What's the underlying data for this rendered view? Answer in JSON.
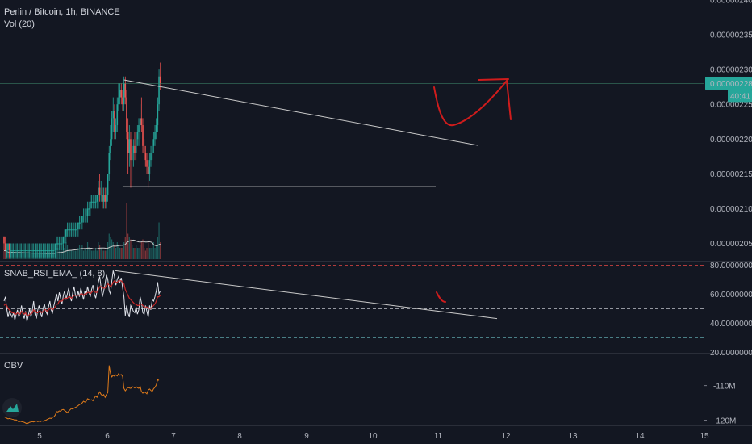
{
  "header": {
    "title": "Perlin / Bitcoin, 1h, BINANCE",
    "volume_label": "Vol (20)"
  },
  "price_tag": {
    "value": "0.00000228",
    "countdown": "40:41"
  },
  "chart_data": [
    {
      "type": "candlestick",
      "title": "Perlin / Bitcoin, 1h, BINANCE",
      "y_ticks": [
        "0.00000240",
        "0.00000235",
        "0.00000230",
        "0.00000225",
        "0.00000220",
        "0.00000215",
        "0.00000210",
        "0.00000205"
      ],
      "ylim": [
        2.025e-06,
        2.4e-06
      ],
      "x_ticks": [
        "5",
        "6",
        "7",
        "8",
        "9",
        "10",
        "11",
        "12",
        "13",
        "14",
        "15"
      ],
      "last_price": 2.28e-06,
      "candles_ohlc": [
        [
          2.06,
          2.06,
          2.04,
          2.05
        ],
        [
          2.05,
          2.06,
          2.04,
          2.04
        ],
        [
          2.04,
          2.05,
          2.03,
          2.04
        ],
        [
          2.04,
          2.05,
          2.03,
          2.05
        ],
        [
          2.05,
          2.05,
          2.03,
          2.04
        ],
        [
          2.04,
          2.05,
          2.03,
          2.04
        ],
        [
          2.04,
          2.05,
          2.03,
          2.04
        ],
        [
          2.04,
          2.05,
          2.03,
          2.04
        ],
        [
          2.04,
          2.05,
          2.03,
          2.04
        ],
        [
          2.04,
          2.05,
          2.03,
          2.04
        ],
        [
          2.04,
          2.05,
          2.03,
          2.04
        ],
        [
          2.04,
          2.05,
          2.03,
          2.04
        ],
        [
          2.04,
          2.05,
          2.03,
          2.04
        ],
        [
          2.04,
          2.05,
          2.03,
          2.04
        ],
        [
          2.04,
          2.05,
          2.03,
          2.04
        ],
        [
          2.04,
          2.05,
          2.03,
          2.04
        ],
        [
          2.04,
          2.05,
          2.03,
          2.04
        ],
        [
          2.04,
          2.05,
          2.03,
          2.04
        ],
        [
          2.04,
          2.05,
          2.03,
          2.04
        ],
        [
          2.04,
          2.05,
          2.03,
          2.04
        ],
        [
          2.04,
          2.05,
          2.03,
          2.04
        ],
        [
          2.04,
          2.05,
          2.03,
          2.04
        ],
        [
          2.04,
          2.05,
          2.03,
          2.04
        ],
        [
          2.04,
          2.05,
          2.03,
          2.04
        ],
        [
          2.04,
          2.05,
          2.03,
          2.04
        ],
        [
          2.04,
          2.05,
          2.03,
          2.04
        ],
        [
          2.04,
          2.05,
          2.03,
          2.04
        ],
        [
          2.04,
          2.05,
          2.03,
          2.04
        ],
        [
          2.04,
          2.05,
          2.03,
          2.04
        ],
        [
          2.04,
          2.05,
          2.03,
          2.04
        ],
        [
          2.04,
          2.05,
          2.03,
          2.04
        ],
        [
          2.04,
          2.05,
          2.03,
          2.04
        ],
        [
          2.04,
          2.05,
          2.03,
          2.04
        ],
        [
          2.04,
          2.05,
          2.03,
          2.04
        ],
        [
          2.04,
          2.05,
          2.03,
          2.04
        ],
        [
          2.04,
          2.05,
          2.03,
          2.04
        ],
        [
          2.04,
          2.05,
          2.03,
          2.04
        ],
        [
          2.04,
          2.05,
          2.03,
          2.04
        ],
        [
          2.04,
          2.05,
          2.03,
          2.05
        ],
        [
          2.05,
          2.06,
          2.04,
          2.05
        ],
        [
          2.05,
          2.06,
          2.04,
          2.05
        ],
        [
          2.05,
          2.06,
          2.04,
          2.05
        ],
        [
          2.05,
          2.06,
          2.04,
          2.05
        ],
        [
          2.05,
          2.06,
          2.04,
          2.05
        ],
        [
          2.05,
          2.06,
          2.04,
          2.06
        ],
        [
          2.06,
          2.07,
          2.05,
          2.06
        ],
        [
          2.06,
          2.07,
          2.05,
          2.07
        ],
        [
          2.07,
          2.08,
          2.06,
          2.07
        ],
        [
          2.07,
          2.08,
          2.06,
          2.07
        ],
        [
          2.07,
          2.08,
          2.06,
          2.07
        ],
        [
          2.07,
          2.08,
          2.06,
          2.07
        ],
        [
          2.07,
          2.08,
          2.06,
          2.07
        ],
        [
          2.07,
          2.08,
          2.06,
          2.07
        ],
        [
          2.07,
          2.08,
          2.06,
          2.07
        ],
        [
          2.07,
          2.08,
          2.06,
          2.07
        ],
        [
          2.07,
          2.08,
          2.06,
          2.08
        ],
        [
          2.08,
          2.09,
          2.07,
          2.08
        ],
        [
          2.08,
          2.09,
          2.07,
          2.08
        ],
        [
          2.08,
          2.09,
          2.07,
          2.09
        ],
        [
          2.09,
          2.1,
          2.08,
          2.09
        ],
        [
          2.09,
          2.1,
          2.08,
          2.09
        ],
        [
          2.09,
          2.1,
          2.08,
          2.09
        ],
        [
          2.09,
          2.11,
          2.08,
          2.1
        ],
        [
          2.1,
          2.11,
          2.09,
          2.1
        ],
        [
          2.1,
          2.12,
          2.09,
          2.11
        ],
        [
          2.11,
          2.12,
          2.1,
          2.11
        ],
        [
          2.11,
          2.12,
          2.1,
          2.11
        ],
        [
          2.11,
          2.12,
          2.1,
          2.11
        ],
        [
          2.11,
          2.12,
          2.1,
          2.11
        ],
        [
          2.11,
          2.12,
          2.1,
          2.12
        ],
        [
          2.12,
          2.14,
          2.1,
          2.13
        ],
        [
          2.13,
          2.15,
          2.11,
          2.12
        ],
        [
          2.12,
          2.14,
          2.11,
          2.12
        ],
        [
          2.12,
          2.13,
          2.1,
          2.11
        ],
        [
          2.11,
          2.13,
          2.1,
          2.12
        ],
        [
          2.12,
          2.13,
          2.1,
          2.11
        ],
        [
          2.11,
          2.13,
          2.1,
          2.12
        ],
        [
          2.12,
          2.15,
          2.11,
          2.15
        ],
        [
          2.15,
          2.19,
          2.14,
          2.18
        ],
        [
          2.18,
          2.22,
          2.17,
          2.2
        ],
        [
          2.2,
          2.24,
          2.19,
          2.23
        ],
        [
          2.23,
          2.26,
          2.21,
          2.24
        ],
        [
          2.24,
          2.25,
          2.2,
          2.21
        ],
        [
          2.21,
          2.23,
          2.2,
          2.22
        ],
        [
          2.22,
          2.26,
          2.21,
          2.25
        ],
        [
          2.25,
          2.28,
          2.24,
          2.26
        ],
        [
          2.26,
          2.28,
          2.25,
          2.27
        ],
        [
          2.27,
          2.28,
          2.25,
          2.26
        ],
        [
          2.26,
          2.27,
          2.24,
          2.25
        ],
        [
          2.25,
          2.29,
          2.24,
          2.28
        ],
        [
          2.28,
          2.29,
          2.25,
          2.26
        ],
        [
          2.26,
          2.27,
          2.2,
          2.21
        ],
        [
          2.21,
          2.23,
          2.15,
          2.18
        ],
        [
          2.18,
          2.22,
          2.16,
          2.2
        ],
        [
          2.2,
          2.21,
          2.13,
          2.17
        ],
        [
          2.17,
          2.2,
          2.14,
          2.18
        ],
        [
          2.18,
          2.2,
          2.16,
          2.19
        ],
        [
          2.19,
          2.21,
          2.17,
          2.18
        ],
        [
          2.18,
          2.21,
          2.17,
          2.2
        ],
        [
          2.2,
          2.22,
          2.19,
          2.21
        ],
        [
          2.21,
          2.23,
          2.19,
          2.22
        ],
        [
          2.22,
          2.25,
          2.2,
          2.23
        ],
        [
          2.23,
          2.26,
          2.21,
          2.22
        ],
        [
          2.22,
          2.23,
          2.18,
          2.19
        ],
        [
          2.19,
          2.2,
          2.16,
          2.18
        ],
        [
          2.18,
          2.19,
          2.16,
          2.17
        ],
        [
          2.17,
          2.18,
          2.15,
          2.16
        ],
        [
          2.16,
          2.17,
          2.13,
          2.15
        ],
        [
          2.15,
          2.18,
          2.14,
          2.17
        ],
        [
          2.17,
          2.19,
          2.16,
          2.18
        ],
        [
          2.18,
          2.2,
          2.17,
          2.19
        ],
        [
          2.19,
          2.21,
          2.18,
          2.2
        ],
        [
          2.2,
          2.22,
          2.19,
          2.21
        ],
        [
          2.21,
          2.23,
          2.2,
          2.22
        ],
        [
          2.22,
          2.26,
          2.21,
          2.25
        ],
        [
          2.25,
          2.3,
          2.24,
          2.29
        ],
        [
          2.29,
          2.31,
          2.27,
          2.28
        ]
      ],
      "candles_unit": "x1e-6 BTC",
      "volumes": [
        3,
        3,
        2,
        2,
        2,
        2,
        3,
        2,
        2,
        2,
        2,
        3,
        2,
        2,
        2,
        2,
        2,
        2,
        2,
        2,
        2,
        2,
        2,
        2,
        2,
        2,
        2,
        2,
        2,
        2,
        2,
        2,
        2,
        2,
        2,
        2,
        2,
        2,
        3,
        4,
        4,
        3,
        3,
        3,
        5,
        4,
        6,
        5,
        3,
        3,
        3,
        3,
        3,
        3,
        3,
        4,
        5,
        4,
        5,
        3,
        4,
        3,
        6,
        4,
        4,
        3,
        3,
        3,
        4,
        3,
        6,
        5,
        4,
        3,
        3,
        3,
        3,
        6,
        9,
        8,
        7,
        6,
        5,
        4,
        6,
        5,
        4,
        4,
        4,
        6,
        8,
        20,
        9,
        8,
        7,
        5,
        4,
        4,
        5,
        4,
        4,
        5,
        6,
        7,
        4,
        3,
        4,
        6,
        4,
        4,
        4,
        6,
        4,
        5,
        8,
        13,
        6
      ]
    },
    {
      "type": "line",
      "title": "SNAB_RSI_EMA_ (14, 8)",
      "y_ticks": [
        "80.00000000",
        "60.00000000",
        "40.00000000",
        "20.00000000"
      ],
      "ylim": [
        20,
        80
      ],
      "series": [
        {
          "values": [
            55,
            58,
            50,
            44,
            48,
            46,
            44,
            47,
            42,
            46,
            49,
            44,
            47,
            52,
            46,
            43,
            48,
            41,
            45,
            50,
            44,
            49,
            55,
            46,
            43,
            49,
            52,
            47,
            44,
            50,
            53,
            48,
            46,
            51,
            55,
            49,
            47,
            52,
            56,
            60,
            55,
            61,
            57,
            53,
            59,
            62,
            56,
            60,
            64,
            58,
            55,
            61,
            65,
            59,
            57,
            62,
            58,
            64,
            60,
            56,
            62,
            59,
            65,
            61,
            58,
            63,
            66,
            60,
            57,
            62,
            68,
            72,
            65,
            58,
            62,
            67,
            73,
            70,
            62,
            60,
            69,
            76,
            72,
            66,
            70,
            72,
            68,
            71,
            64,
            58,
            45,
            52,
            47,
            44,
            52,
            50,
            48,
            47,
            51,
            46,
            49,
            58,
            54,
            47,
            46,
            52,
            48,
            44,
            52,
            49,
            56,
            55,
            58,
            62,
            68,
            60,
            62
          ]
        },
        {
          "values": [
            52,
            53,
            52,
            50,
            49,
            48,
            47,
            47,
            46,
            46,
            47,
            46,
            46,
            48,
            47,
            46,
            47,
            45,
            45,
            46,
            46,
            47,
            49,
            48,
            47,
            47,
            48,
            48,
            47,
            48,
            49,
            49,
            48,
            49,
            50,
            50,
            49,
            50,
            51,
            53,
            53,
            55,
            55,
            55,
            56,
            57,
            57,
            57,
            58,
            58,
            57,
            58,
            59,
            59,
            59,
            59,
            59,
            60,
            60,
            59,
            60,
            60,
            61,
            61,
            60,
            61,
            62,
            62,
            61,
            61,
            63,
            65,
            65,
            64,
            64,
            64,
            66,
            67,
            66,
            65,
            66,
            68,
            69,
            68,
            68,
            69,
            69,
            69,
            68,
            67,
            63,
            61,
            59,
            57,
            56,
            55,
            54,
            53,
            53,
            52,
            52,
            53,
            53,
            52,
            51,
            51,
            51,
            50,
            50,
            50,
            51,
            52,
            53,
            55,
            58,
            58,
            59
          ]
        }
      ]
    },
    {
      "type": "line",
      "title": "OBV",
      "y_ticks": [
        "-110M",
        "-120M"
      ],
      "ylim": [
        -121.5,
        -101
      ],
      "series": [
        {
          "values": [
            -119,
            -119.2,
            -119.4,
            -119.6,
            -119.5,
            -119.6,
            -119.7,
            -119.8,
            -120,
            -119.9,
            -120.2,
            -120.5,
            -120.3,
            -120.4,
            -120.5,
            -120.6,
            -120.8,
            -121,
            -120.8,
            -120.6,
            -120.5,
            -120.4,
            -120.5,
            -120.3,
            -120.2,
            -120.4,
            -120.3,
            -120.4,
            -120.2,
            -120.3,
            -120.1,
            -120,
            -119.8,
            -119.6,
            -119.4,
            -119.5,
            -119.2,
            -119,
            -118.5,
            -117.5,
            -117.6,
            -117.3,
            -117.4,
            -117,
            -116.9,
            -117.2,
            -117.5,
            -117.8,
            -117.4,
            -117,
            -116.6,
            -116.8,
            -116.5,
            -116.3,
            -116.1,
            -115.8,
            -115.5,
            -115.3,
            -115,
            -114.5,
            -114.8,
            -114.5,
            -113.8,
            -114,
            -114.2,
            -114.1,
            -114.4,
            -113.6,
            -113,
            -113.4,
            -112.5,
            -111.8,
            -112.5,
            -112.9,
            -112.6,
            -113.4,
            -112.6,
            -112,
            -104.2,
            -106.5,
            -107.5,
            -107,
            -107.3,
            -106.9,
            -107.2,
            -106.6,
            -107,
            -106.8,
            -107.4,
            -110.8,
            -111.5,
            -111,
            -110.5,
            -110.7,
            -110.8,
            -110.3,
            -110.4,
            -110.7,
            -110.3,
            -110.6,
            -110.8,
            -110.2,
            -111.7,
            -112.2,
            -111.9,
            -112,
            -112.4,
            -111.3,
            -111,
            -111.4,
            -111.7,
            -110.9,
            -110.5,
            -109.8,
            -108.3,
            -108.5
          ]
        }
      ]
    }
  ],
  "rsi_panel": {
    "label": "SNAB_RSI_EMA_ (14, 8)"
  },
  "obv_panel": {
    "label": "OBV"
  },
  "colors": {
    "background": "#131722",
    "bull": "#26a69a",
    "bear": "#ef5350",
    "annotation": "#d01c1c",
    "rsi_line": "#e0e3eb",
    "rsi_ema": "#c62828",
    "obv": "#e07b1a",
    "volume_ma": "#c9c9c9"
  }
}
